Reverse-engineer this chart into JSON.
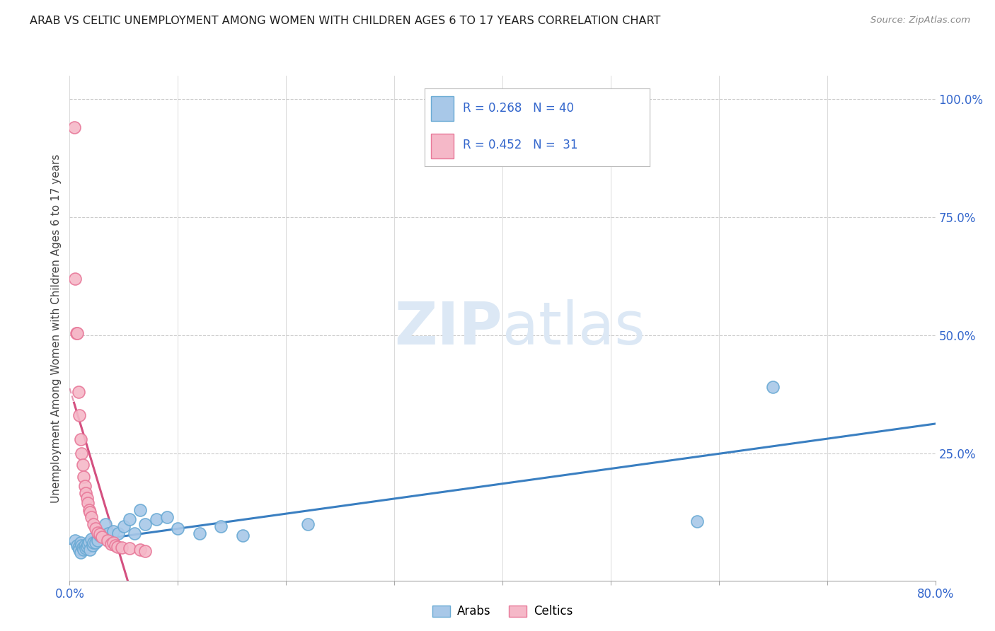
{
  "title": "ARAB VS CELTIC UNEMPLOYMENT AMONG WOMEN WITH CHILDREN AGES 6 TO 17 YEARS CORRELATION CHART",
  "source": "Source: ZipAtlas.com",
  "ylabel": "Unemployment Among Women with Children Ages 6 to 17 years",
  "xlim": [
    0.0,
    0.8
  ],
  "ylim": [
    -0.02,
    1.05
  ],
  "arab_R": "0.268",
  "arab_N": "40",
  "celtic_R": "0.452",
  "celtic_N": "31",
  "arab_color": "#a8c8e8",
  "arab_color_edge": "#6aaad4",
  "celtic_color": "#f5b8c8",
  "celtic_color_edge": "#e87899",
  "arab_line_color": "#3a7fc1",
  "celtic_line_color": "#d45080",
  "background_color": "#ffffff",
  "grid_color": "#cccccc",
  "watermark_zip": "ZIP",
  "watermark_atlas": "atlas",
  "watermark_color": "#dce8f5",
  "title_color": "#222222",
  "arab_x": [
    0.005,
    0.007,
    0.008,
    0.009,
    0.01,
    0.01,
    0.011,
    0.012,
    0.013,
    0.014,
    0.015,
    0.016,
    0.017,
    0.018,
    0.019,
    0.02,
    0.021,
    0.022,
    0.024,
    0.026,
    0.028,
    0.03,
    0.033,
    0.036,
    0.04,
    0.045,
    0.05,
    0.055,
    0.06,
    0.065,
    0.07,
    0.08,
    0.09,
    0.1,
    0.12,
    0.14,
    0.16,
    0.22,
    0.58,
    0.65
  ],
  "arab_y": [
    0.065,
    0.055,
    0.05,
    0.045,
    0.06,
    0.04,
    0.055,
    0.05,
    0.045,
    0.055,
    0.048,
    0.052,
    0.058,
    0.062,
    0.045,
    0.068,
    0.055,
    0.06,
    0.06,
    0.065,
    0.075,
    0.075,
    0.1,
    0.08,
    0.085,
    0.08,
    0.095,
    0.11,
    0.08,
    0.13,
    0.1,
    0.11,
    0.115,
    0.09,
    0.08,
    0.095,
    0.075,
    0.1,
    0.105,
    0.39
  ],
  "celtic_x": [
    0.004,
    0.005,
    0.006,
    0.007,
    0.008,
    0.009,
    0.01,
    0.011,
    0.012,
    0.013,
    0.014,
    0.015,
    0.016,
    0.017,
    0.018,
    0.019,
    0.02,
    0.022,
    0.024,
    0.026,
    0.028,
    0.03,
    0.035,
    0.038,
    0.04,
    0.042,
    0.044,
    0.048,
    0.055,
    0.065,
    0.07
  ],
  "celtic_y": [
    0.94,
    0.62,
    0.505,
    0.505,
    0.38,
    0.33,
    0.28,
    0.25,
    0.225,
    0.2,
    0.18,
    0.165,
    0.155,
    0.145,
    0.13,
    0.125,
    0.115,
    0.1,
    0.09,
    0.082,
    0.078,
    0.073,
    0.065,
    0.058,
    0.06,
    0.055,
    0.052,
    0.05,
    0.048,
    0.045,
    0.042
  ],
  "legend_label_arab": "Arabs",
  "legend_label_celtic": "Celtics"
}
